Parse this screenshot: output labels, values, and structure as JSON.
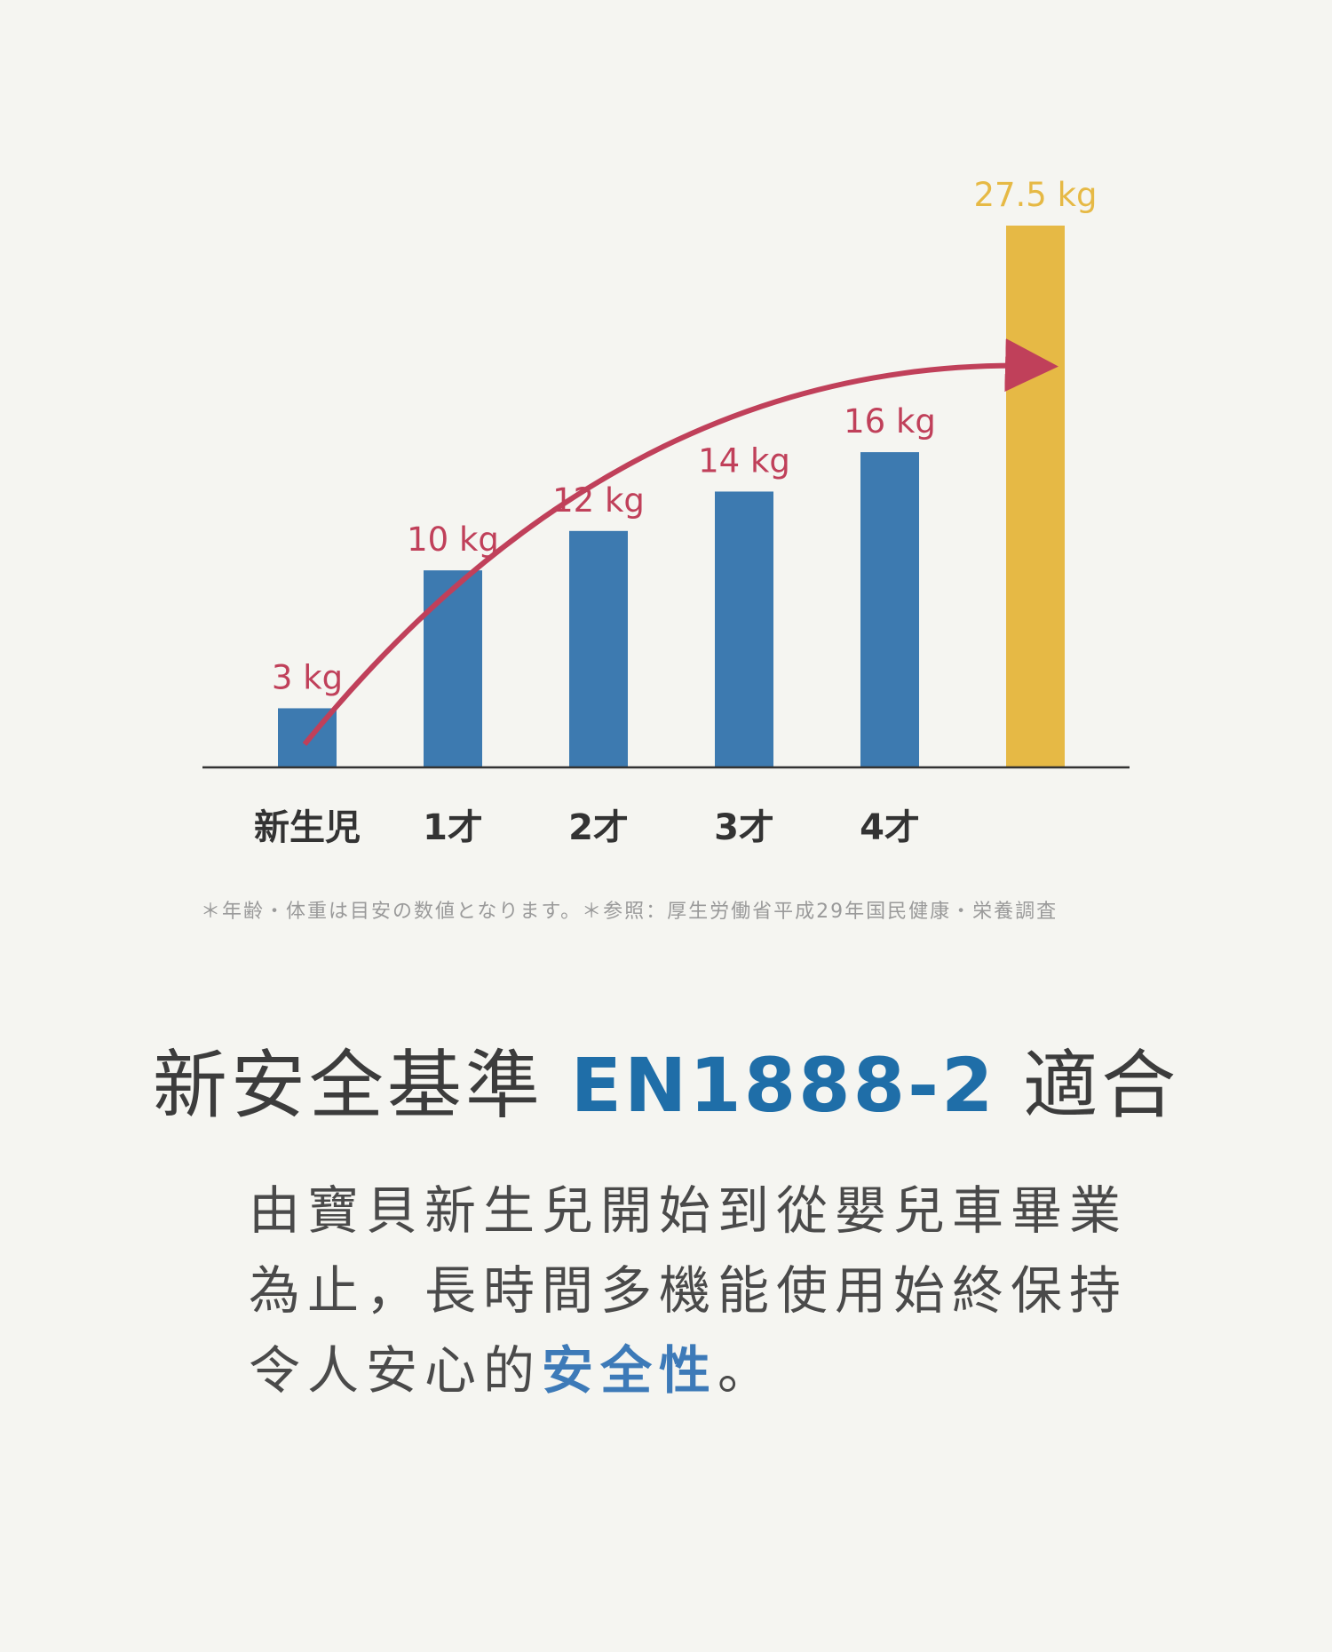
{
  "colors": {
    "bar": "#3d7ab0",
    "bar_highlight": "#e6b945",
    "value_label": "#c0405a",
    "value_label_highlight": "#e6b945",
    "arrow": "#c0405a",
    "axis": "#333333",
    "headline_accent": "#1f6ea8",
    "body_accent": "#3d7ab8"
  },
  "chart_data": {
    "type": "bar",
    "categories": [
      "新生児",
      "1才",
      "2才",
      "3才",
      "4才",
      ""
    ],
    "values": [
      3,
      10,
      12,
      14,
      16,
      27.5
    ],
    "value_labels": [
      "3 kg",
      "10 kg",
      "12 kg",
      "14 kg",
      "16 kg",
      "27.5 kg"
    ],
    "highlight_index": 5,
    "ylim": [
      0,
      27.5
    ],
    "grid": false,
    "legend": "none",
    "annotations": [
      "trend arrow from first bar rising to the highlighted bar"
    ]
  },
  "footnote": "＊年齢・体重は目安の数値となります。＊参照：厚生労働省平成29年国民健康・栄養調査",
  "headline": {
    "prefix": "新安全基準 ",
    "en": "EN1888-2",
    "suffix": " 適合"
  },
  "body": {
    "line1": "由寶貝新生兒開始到從嬰兒車畢業",
    "line2": "為止，長時間多機能使用始終保持",
    "line3_prefix": "令人安心的",
    "line3_highlight": "安全性",
    "line3_suffix": "。"
  }
}
